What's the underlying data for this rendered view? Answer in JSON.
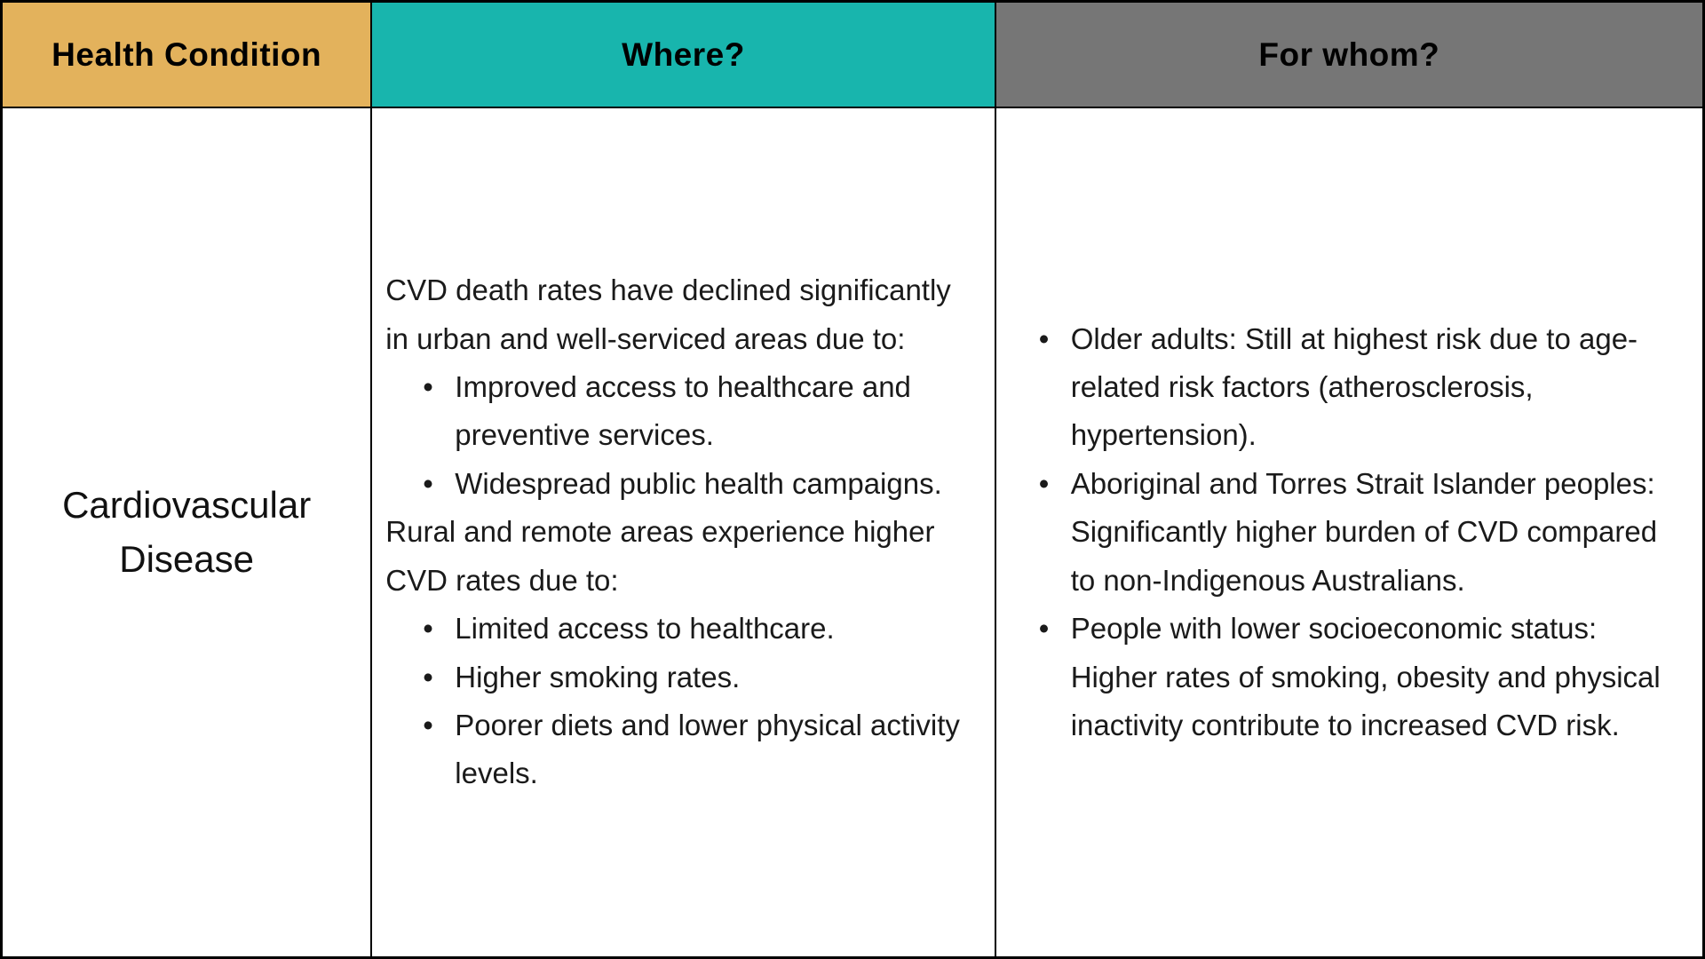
{
  "table": {
    "headers": [
      {
        "label": "Health Condition",
        "bg": "#E3B25C"
      },
      {
        "label": "Where?",
        "bg": "#18B5AD"
      },
      {
        "label": "For whom?",
        "bg": "#767676"
      }
    ],
    "row": {
      "condition": "Cardiovascular Disease",
      "where": {
        "intro1": "CVD death rates have declined significantly in urban and well-serviced areas due to:",
        "bullets1": [
          "Improved access to healthcare and preventive services.",
          "Widespread public health campaigns."
        ],
        "intro2": "Rural and remote areas experience higher CVD rates due to:",
        "bullets2": [
          "Limited access to healthcare.",
          "Higher smoking rates.",
          "Poorer diets and lower physical activity levels."
        ]
      },
      "for_whom": {
        "bullets": [
          "Older adults: Still at highest risk due to age-related risk factors (atherosclerosis, hypertension).",
          "Aboriginal and Torres Strait Islander peoples: Significantly higher burden of CVD compared to non-Indigenous Australians.",
          "People with lower socioeconomic status: Higher rates of smoking, obesity and physical inactivity contribute to increased CVD risk."
        ]
      }
    }
  }
}
